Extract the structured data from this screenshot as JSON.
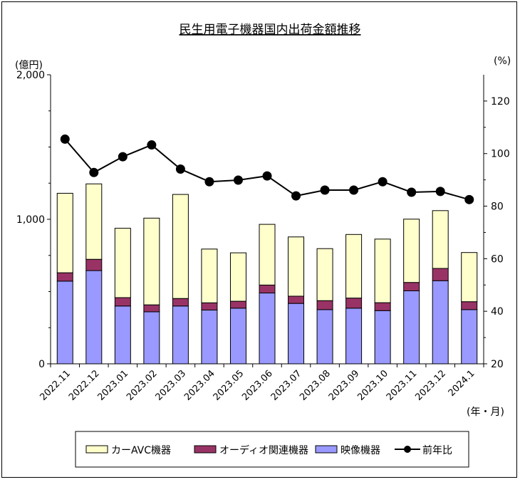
{
  "chart_data": {
    "type": "bar+line",
    "title": "民生用電子機器国内出荷金額推移",
    "y_left_unit": "(億円)",
    "y_right_unit": "(%)",
    "x_unit": "(年・月)",
    "y_left_range": [
      0,
      2000
    ],
    "y_left_ticks": [
      "0",
      "1,000",
      "2,000"
    ],
    "y_left_tick_values": [
      0,
      1000,
      2000
    ],
    "y_right_range": [
      20,
      130
    ],
    "y_right_ticks": [
      "20",
      "40",
      "60",
      "80",
      "100",
      "120"
    ],
    "y_right_tick_values": [
      20,
      40,
      60,
      80,
      100,
      120
    ],
    "categories": [
      "2022.11",
      "2022.12",
      "2023.01",
      "2023.02",
      "2023.03",
      "2023.04",
      "2023.05",
      "2023.06",
      "2023.07",
      "2023.08",
      "2023.09",
      "2023.10",
      "2023.11",
      "2023.12",
      "2024.1"
    ],
    "stack_series": [
      {
        "name": "映像機器",
        "color": "#9999ff",
        "values": [
          572,
          645,
          400,
          360,
          400,
          372,
          385,
          490,
          418,
          375,
          385,
          368,
          505,
          575,
          375
        ]
      },
      {
        "name": "オーディオ関連機器",
        "color": "#993366",
        "values": [
          58,
          78,
          58,
          48,
          52,
          50,
          48,
          55,
          50,
          62,
          70,
          55,
          58,
          85,
          55
        ]
      },
      {
        "name": "カーAVC機器",
        "color": "#ffffcc",
        "values": [
          550,
          522,
          480,
          600,
          720,
          372,
          335,
          420,
          410,
          360,
          440,
          440,
          438,
          400,
          340
        ]
      }
    ],
    "line_series": {
      "name": "前年比",
      "color": "#000000",
      "values": [
        105.5,
        92.8,
        98.8,
        103.3,
        94.1,
        89.3,
        89.9,
        91.5,
        83.9,
        86.1,
        86.1,
        89.3,
        85.3,
        85.6,
        82.5
      ]
    },
    "legend": {
      "position": "bottom",
      "items": [
        {
          "label": "カーAVC機器",
          "kind": "bar",
          "color": "#ffffcc"
        },
        {
          "label": "オーディオ関連機器",
          "kind": "bar",
          "color": "#993366"
        },
        {
          "label": "映像機器",
          "kind": "bar",
          "color": "#9999ff"
        },
        {
          "label": "前年比",
          "kind": "line",
          "color": "#000000"
        }
      ]
    }
  }
}
